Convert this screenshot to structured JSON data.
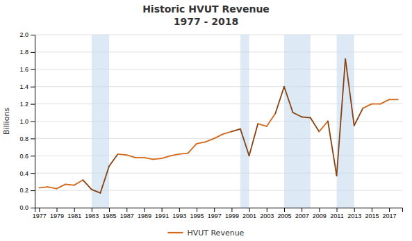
{
  "chart_data": {
    "type": "line",
    "title": "Historic HVUT Revenue",
    "subtitle": "1977 - 2018",
    "y_label": "Billions",
    "x": [
      1977,
      1978,
      1979,
      1980,
      1981,
      1982,
      1983,
      1984,
      1985,
      1986,
      1987,
      1988,
      1989,
      1990,
      1991,
      1992,
      1993,
      1994,
      1995,
      1996,
      1997,
      1998,
      1999,
      2000,
      2001,
      2002,
      2003,
      2004,
      2005,
      2006,
      2007,
      2008,
      2009,
      2010,
      2011,
      2012,
      2013,
      2014,
      2015,
      2016,
      2017,
      2018
    ],
    "series": [
      {
        "name": "HVUT Revenue",
        "color": "#D4681A",
        "values": [
          0.23,
          0.24,
          0.22,
          0.27,
          0.26,
          0.32,
          0.21,
          0.17,
          0.48,
          0.62,
          0.61,
          0.58,
          0.58,
          0.56,
          0.57,
          0.6,
          0.62,
          0.63,
          0.74,
          0.76,
          0.8,
          0.85,
          0.88,
          0.91,
          0.6,
          0.97,
          0.94,
          1.09,
          1.4,
          1.1,
          1.05,
          1.04,
          0.88,
          1.0,
          0.37,
          1.72,
          0.95,
          1.15,
          1.2,
          1.2,
          1.25,
          1.25
        ]
      }
    ],
    "shaded_regions": [
      [
        1983,
        1985
      ],
      [
        2000,
        2001
      ],
      [
        2005,
        2008
      ],
      [
        2011,
        2013
      ]
    ],
    "xlim": [
      1976.5,
      2018.5
    ],
    "xticks": [
      1977,
      1979,
      1981,
      1983,
      1985,
      1987,
      1989,
      1991,
      1993,
      1995,
      1997,
      1999,
      2001,
      2003,
      2005,
      2007,
      2009,
      2011,
      2013,
      2015,
      2017
    ],
    "ylim": [
      0.0,
      2.0
    ],
    "yticks": [
      {
        "value": 0.0,
        "label": "0.0"
      },
      0.2,
      0.4,
      0.6,
      0.8,
      {
        "value": 1.0,
        "label": "1.0"
      },
      1.2,
      1.4,
      1.6,
      1.8,
      {
        "value": 2.0,
        "label": "2.0"
      }
    ],
    "grid": true,
    "legend": "bottom"
  }
}
